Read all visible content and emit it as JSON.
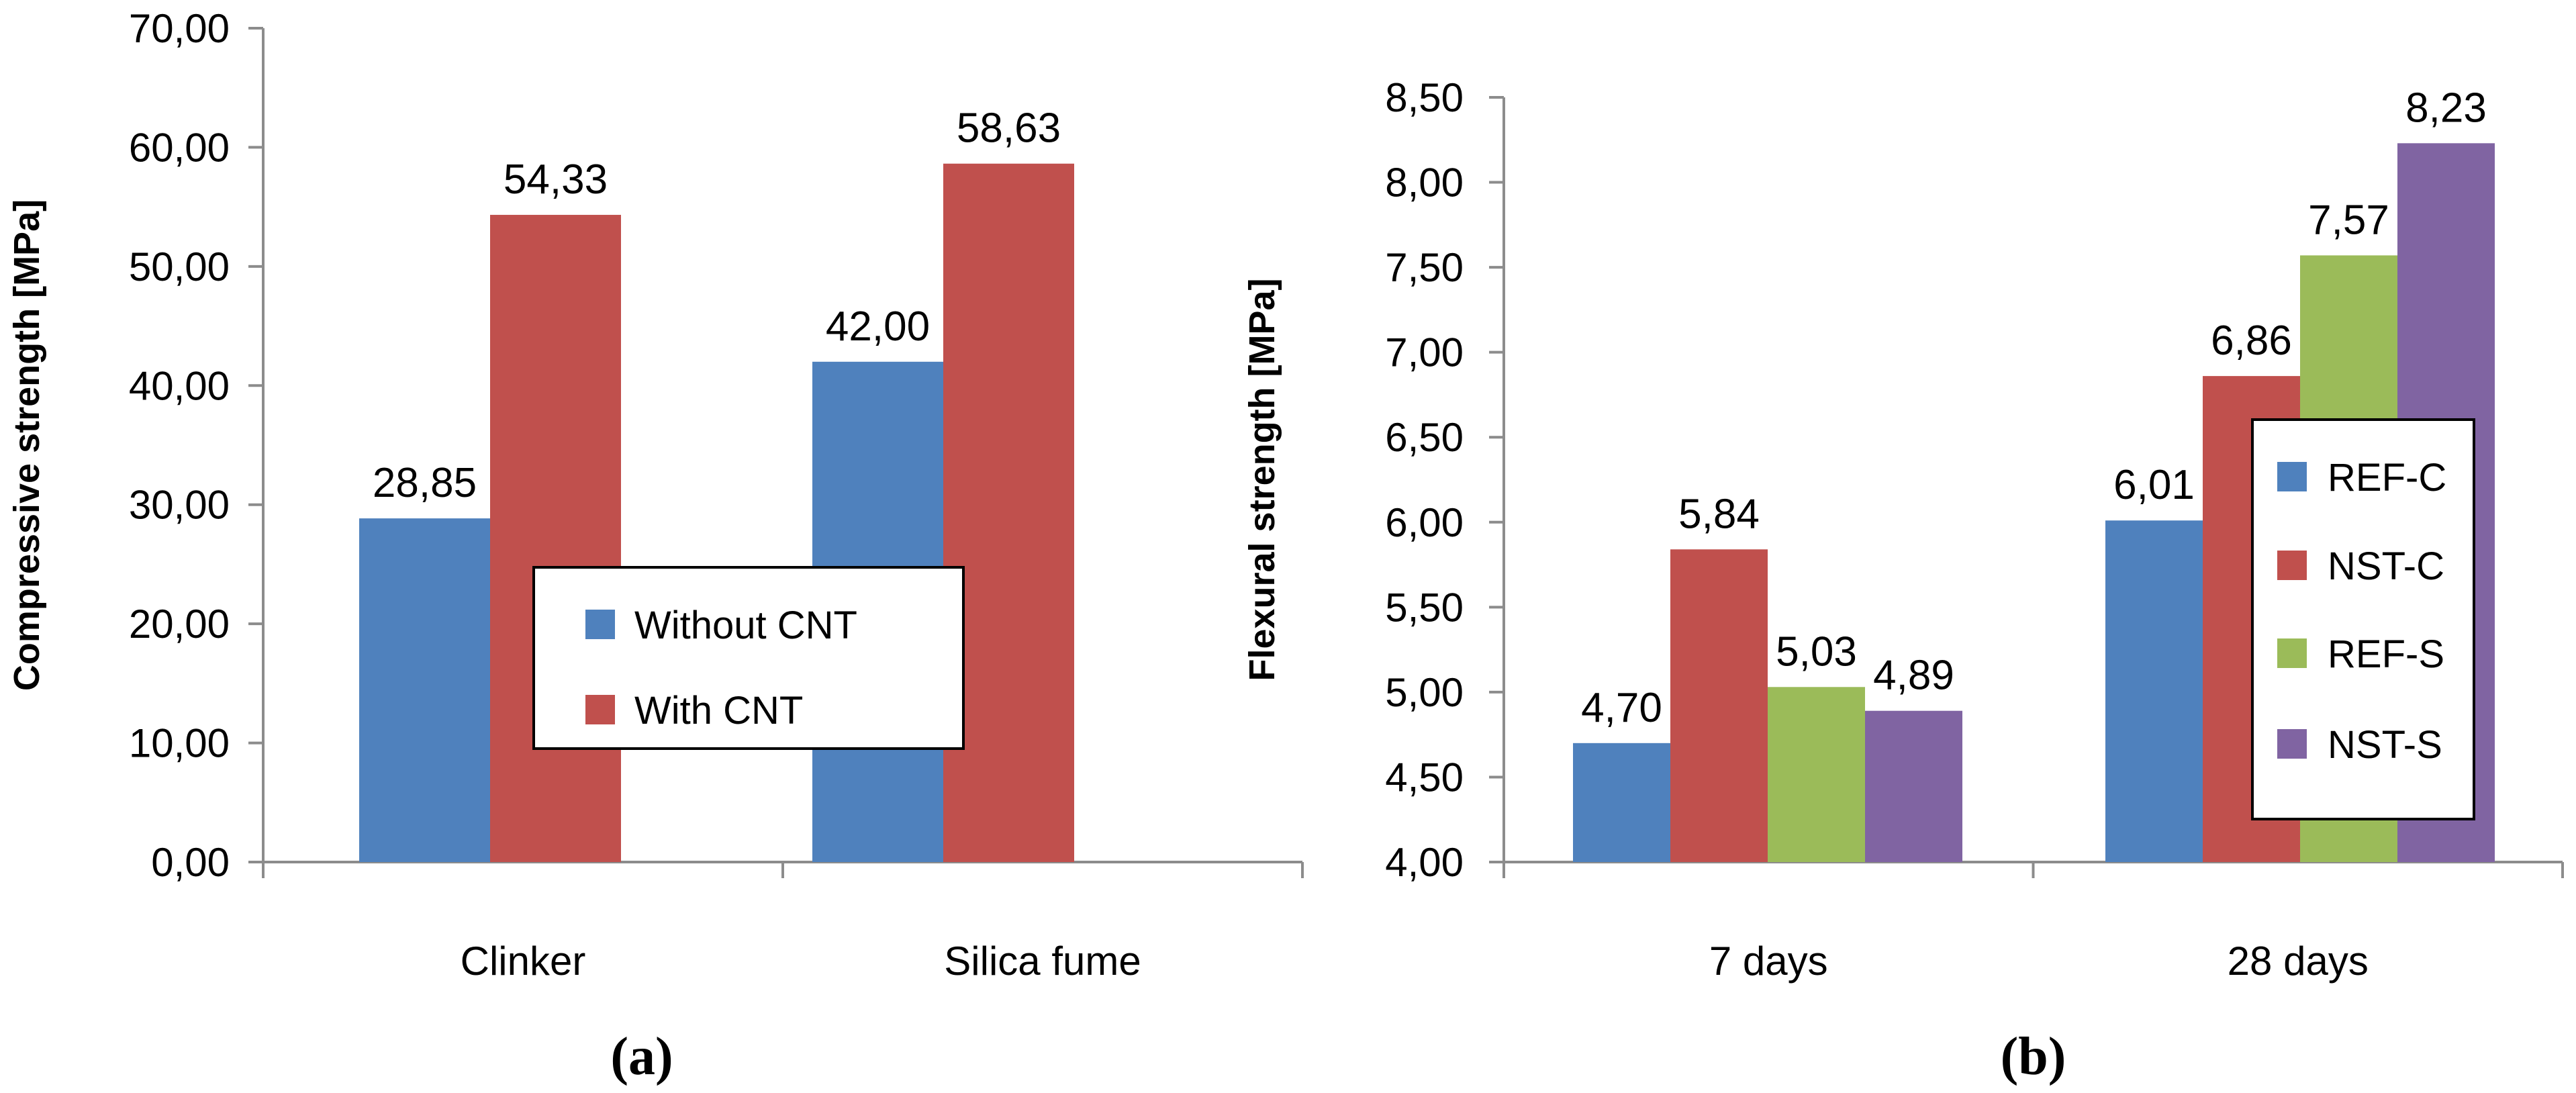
{
  "chart_data": [
    {
      "type": "bar",
      "panel_label": "(a)",
      "title": "",
      "xlabel": "",
      "ylabel": "Compressive strength [MPa]",
      "ylim": [
        0,
        70
      ],
      "yticks": [
        "0,00",
        "10,00",
        "20,00",
        "30,00",
        "40,00",
        "50,00",
        "60,00",
        "70,00"
      ],
      "categories": [
        "Clinker",
        "Silica fume"
      ],
      "series": [
        {
          "name": "Without CNT",
          "color": "#4f81bd",
          "values": [
            28.85,
            42.0
          ],
          "labels": [
            "28,85",
            "42,00"
          ]
        },
        {
          "name": "With CNT",
          "color": "#c0504d",
          "values": [
            54.33,
            58.63
          ],
          "labels": [
            "54,33",
            "58,63"
          ]
        }
      ],
      "legend_position": "center-right"
    },
    {
      "type": "bar",
      "panel_label": "(b)",
      "title": "",
      "xlabel": "",
      "ylabel": "Flexural strength [MPa]",
      "ylim": [
        4,
        8.5
      ],
      "yticks": [
        "4,00",
        "4,50",
        "5,00",
        "5,50",
        "6,00",
        "6,50",
        "7,00",
        "7,50",
        "8,00",
        "8,50"
      ],
      "categories": [
        "7 days",
        "28 days"
      ],
      "series": [
        {
          "name": "REF-C",
          "color": "#4f81bd",
          "values": [
            4.7,
            6.01
          ],
          "labels": [
            "4,70",
            "6,01"
          ]
        },
        {
          "name": "NST-C",
          "color": "#c0504d",
          "values": [
            5.84,
            6.86
          ],
          "labels": [
            "5,84",
            "6,86"
          ]
        },
        {
          "name": "REF-S",
          "color": "#9bbb59",
          "values": [
            5.03,
            7.57
          ],
          "labels": [
            "5,03",
            "7,57"
          ]
        },
        {
          "name": "NST-S",
          "color": "#8064a2",
          "values": [
            4.89,
            8.23
          ],
          "labels": [
            "4,89",
            "8,23"
          ]
        }
      ],
      "legend_position": "right"
    }
  ]
}
